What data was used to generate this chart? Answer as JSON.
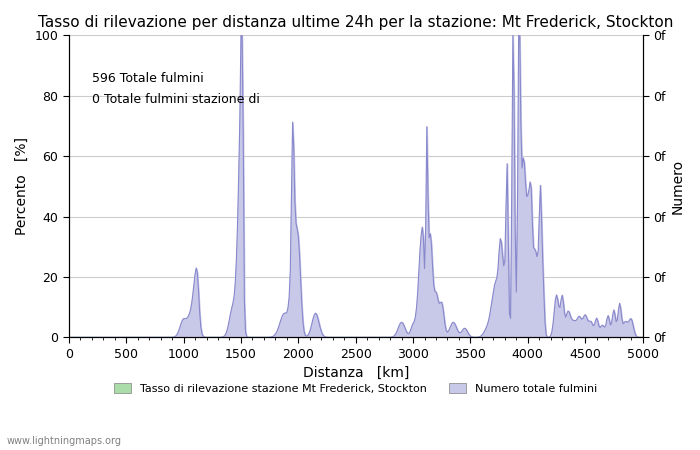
{
  "title": "Tasso di rilevazione per distanza ultime 24h per la stazione: Mt Frederick, Stockton",
  "xlabel": "Distanza   [km]",
  "ylabel_left": "Percento   [%]",
  "ylabel_right": "Numero",
  "annotation_line1": "596 Totale fulmini",
  "annotation_line2": "0 Totale fulmini stazione di",
  "xlim": [
    0,
    5000
  ],
  "ylim": [
    0,
    100
  ],
  "xticks": [
    0,
    500,
    1000,
    1500,
    2000,
    2500,
    3000,
    3500,
    4000,
    4500,
    5000
  ],
  "yticks_left": [
    0,
    20,
    40,
    60,
    80,
    100
  ],
  "yticks_right_labels": [
    "0f",
    "0f",
    "0f",
    "0f",
    "0f",
    "0f",
    "0f"
  ],
  "right_axis_labels": [
    "0f",
    "0f",
    "0f",
    "0f",
    "0f",
    "0f",
    "0f"
  ],
  "legend_label1": "Tasso di rilevazione stazione Mt Frederick, Stockton",
  "legend_label2": "Numero totale fulmini",
  "legend_color1": "#aaddaa",
  "legend_color2": "#c8c8e8",
  "line_color": "#8888cc",
  "fill_color": "#c8c8e8",
  "green_fill_color": "#aaddaa",
  "watermark": "www.lightningmaps.org",
  "background_color": "#ffffff",
  "grid_color": "#cccccc",
  "title_fontsize": 11,
  "axis_fontsize": 10,
  "tick_fontsize": 9
}
